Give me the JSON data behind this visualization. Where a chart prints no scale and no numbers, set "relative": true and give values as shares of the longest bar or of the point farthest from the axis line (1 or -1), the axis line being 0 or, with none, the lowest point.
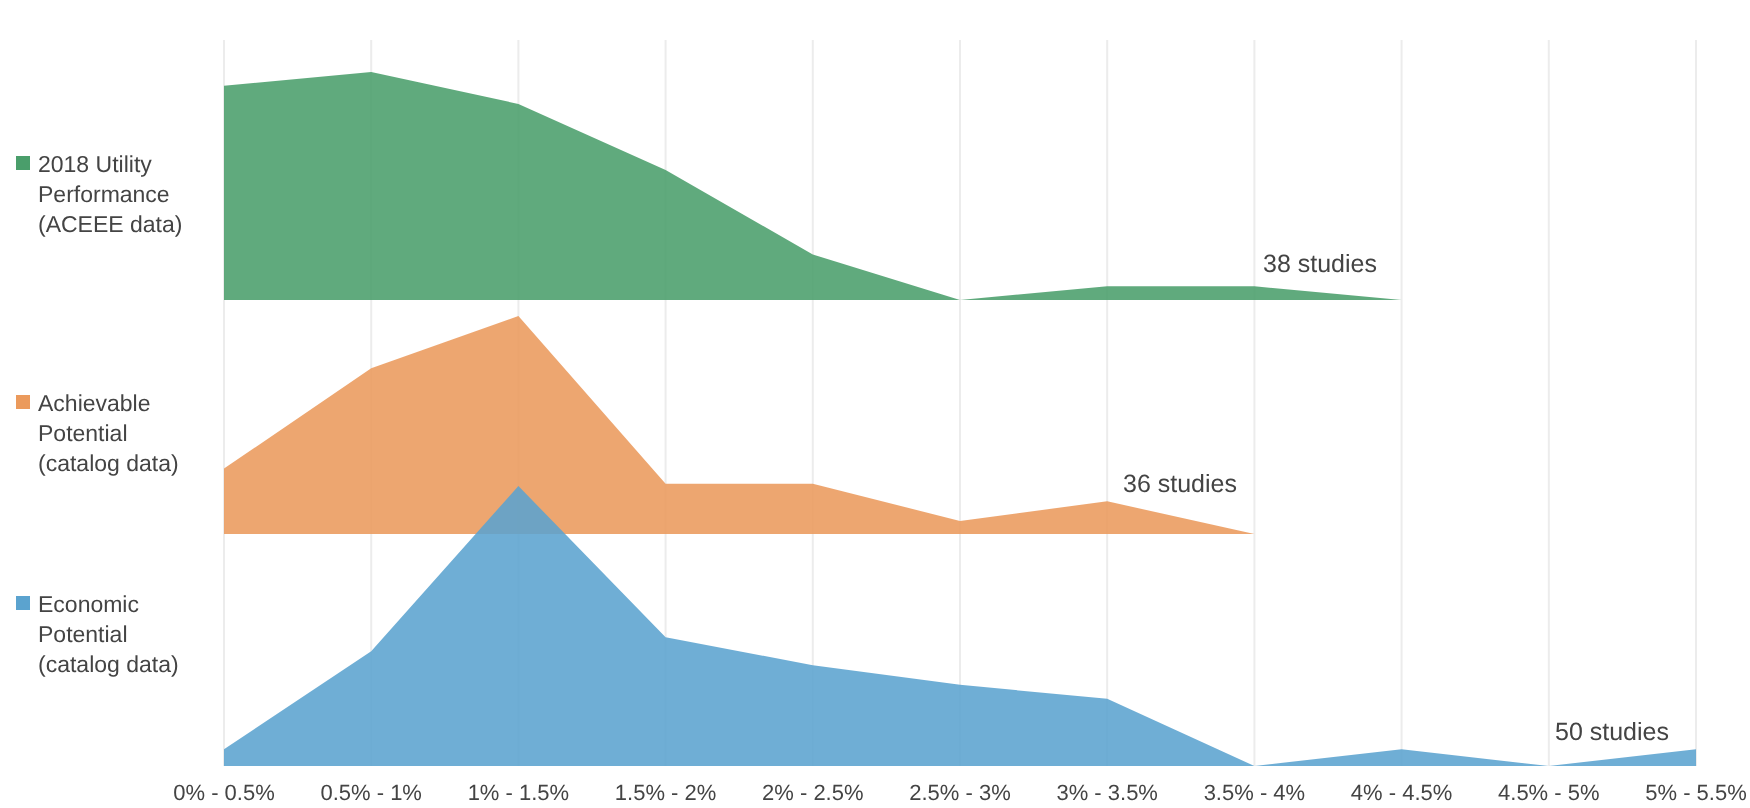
{
  "chart_data": [
    {
      "type": "area",
      "relative": true,
      "series": [
        {
          "name": "2018 Utility Performance (ACEEE data)",
          "color": "#4a9e6b",
          "values": [
            0.94,
            1,
            0.86,
            0.57,
            0.2,
            0,
            0.06,
            0.06,
            0,
            null,
            null
          ]
        }
      ],
      "annotations": [
        "38 studies"
      ],
      "legend": "left",
      "grid": "x",
      "tick_labels": false
    },
    {
      "type": "area",
      "relative": true,
      "series": [
        {
          "name": "Achievable Potential (catalog data)",
          "color": "#eb9a5c",
          "values": [
            0.3,
            0.76,
            1,
            0.23,
            0.23,
            0.06,
            0.15,
            0,
            null,
            null,
            null
          ]
        }
      ],
      "annotations": [
        "36 studies"
      ],
      "legend": "left",
      "grid": "x",
      "tick_labels": false
    },
    {
      "type": "area",
      "relative": true,
      "categories": [
        "0% - 0.5%",
        "0.5% - 1%",
        "1% - 1.5%",
        "1.5% - 2%",
        "2% - 2.5%",
        "2.5% - 3%",
        "3% - 3.5%",
        "3.5% - 4%",
        "4% - 4.5%",
        "4.5% - 5%",
        "5% - 5.5%"
      ],
      "series": [
        {
          "name": "Economic Potential (catalog data)",
          "color": "#5ba3cf",
          "values": [
            0.06,
            0.41,
            1,
            0.46,
            0.36,
            0.29,
            0.24,
            0,
            0.06,
            0,
            0.06
          ]
        }
      ],
      "annotations": [
        "50 studies"
      ],
      "legend": "left",
      "grid": "x",
      "tick_labels": "x"
    }
  ]
}
